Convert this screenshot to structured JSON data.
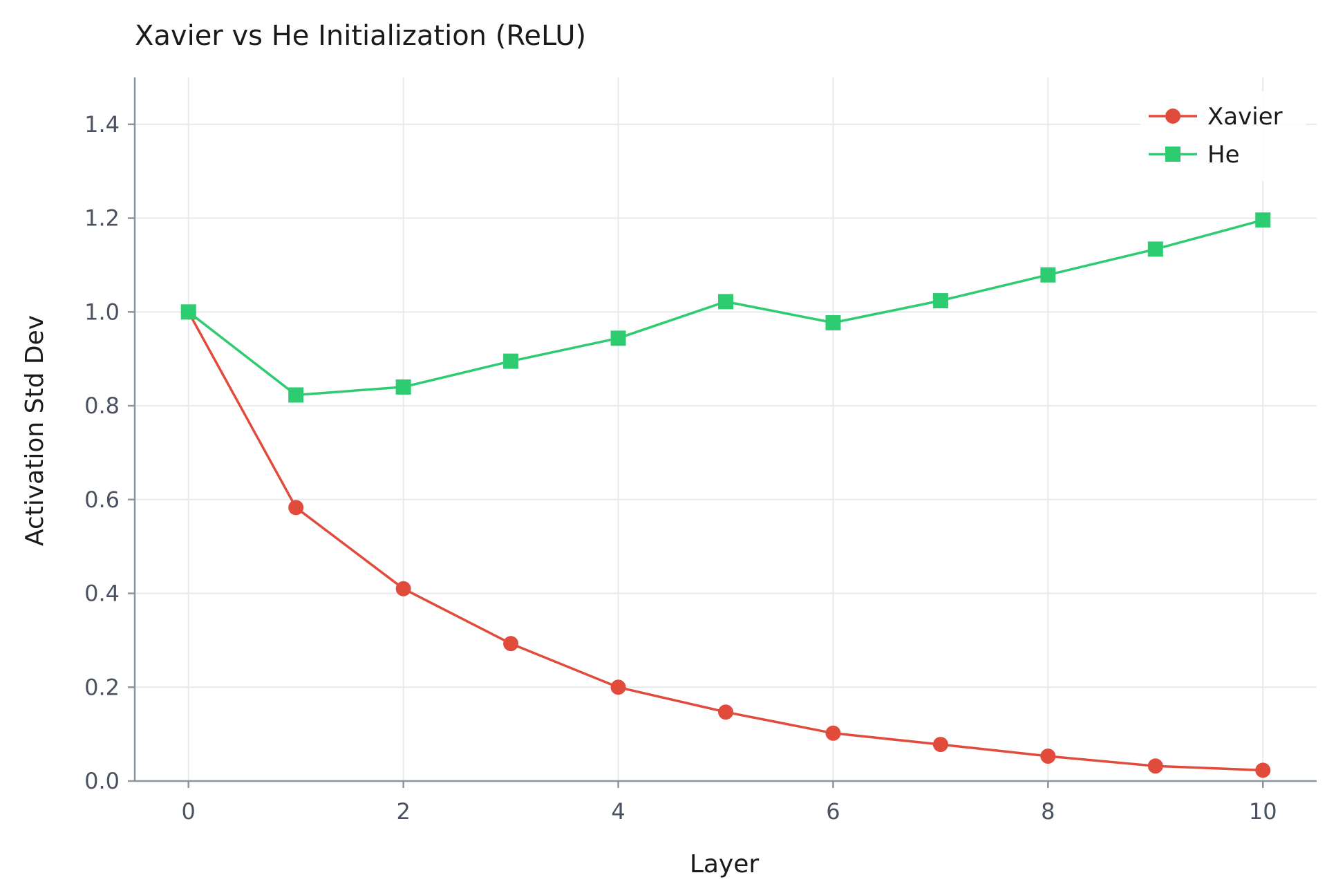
{
  "chart_data": {
    "type": "line",
    "title": "Xavier vs He Initialization (ReLU)",
    "xlabel": "Layer",
    "ylabel": "Activation Std Dev",
    "x": [
      0,
      1,
      2,
      3,
      4,
      5,
      6,
      7,
      8,
      9,
      10
    ],
    "xlim": [
      -0.5,
      10.5
    ],
    "ylim": [
      0.0,
      1.5
    ],
    "xticks": [
      0,
      2,
      4,
      6,
      8,
      10
    ],
    "xtick_labels": [
      "0",
      "2",
      "4",
      "6",
      "8",
      "10"
    ],
    "yticks": [
      0.0,
      0.2,
      0.4,
      0.6,
      0.8,
      1.0,
      1.2,
      1.4
    ],
    "ytick_labels": [
      "0.0",
      "0.2",
      "0.4",
      "0.6",
      "0.8",
      "1.0",
      "1.2",
      "1.4"
    ],
    "grid": true,
    "legend": {
      "placement": "top-right"
    },
    "series": [
      {
        "name": "Xavier",
        "color": "#e04b3c",
        "marker": "circle",
        "values": [
          1.0,
          0.583,
          0.41,
          0.293,
          0.2,
          0.147,
          0.102,
          0.078,
          0.053,
          0.032,
          0.023
        ]
      },
      {
        "name": "He",
        "color": "#2ecc71",
        "marker": "square",
        "values": [
          1.0,
          0.823,
          0.84,
          0.895,
          0.944,
          1.022,
          0.977,
          1.024,
          1.079,
          1.134,
          1.196
        ]
      }
    ]
  }
}
